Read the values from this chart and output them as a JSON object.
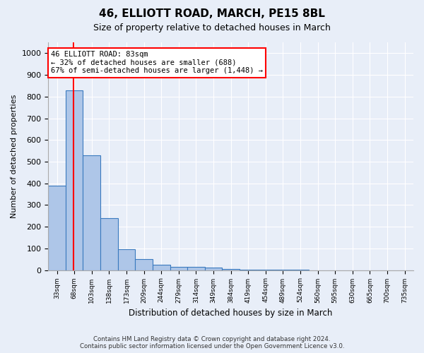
{
  "title": "46, ELLIOTT ROAD, MARCH, PE15 8BL",
  "subtitle": "Size of property relative to detached houses in March",
  "xlabel": "Distribution of detached houses by size in March",
  "ylabel": "Number of detached properties",
  "bin_labels": [
    "33sqm",
    "68sqm",
    "103sqm",
    "138sqm",
    "173sqm",
    "209sqm",
    "244sqm",
    "279sqm",
    "314sqm",
    "349sqm",
    "384sqm",
    "419sqm",
    "454sqm",
    "489sqm",
    "524sqm",
    "560sqm",
    "595sqm",
    "630sqm",
    "665sqm",
    "700sqm",
    "735sqm"
  ],
  "bar_values": [
    390,
    830,
    530,
    240,
    95,
    50,
    25,
    15,
    15,
    10,
    5,
    2,
    1,
    1,
    1,
    0,
    0,
    0,
    0,
    0,
    0
  ],
  "bar_color": "#aec6e8",
  "bar_edge_color": "#3a7abf",
  "ylim": [
    0,
    1050
  ],
  "yticks": [
    0,
    100,
    200,
    300,
    400,
    500,
    600,
    700,
    800,
    900,
    1000
  ],
  "red_line_x": 1.45,
  "annotation_text": "46 ELLIOTT ROAD: 83sqm\n← 32% of detached houses are smaller (688)\n67% of semi-detached houses are larger (1,448) →",
  "footer_text": "Contains HM Land Registry data © Crown copyright and database right 2024.\nContains public sector information licensed under the Open Government Licence v3.0.",
  "bg_color": "#e8eef8",
  "plot_bg_color": "#e8eef8"
}
